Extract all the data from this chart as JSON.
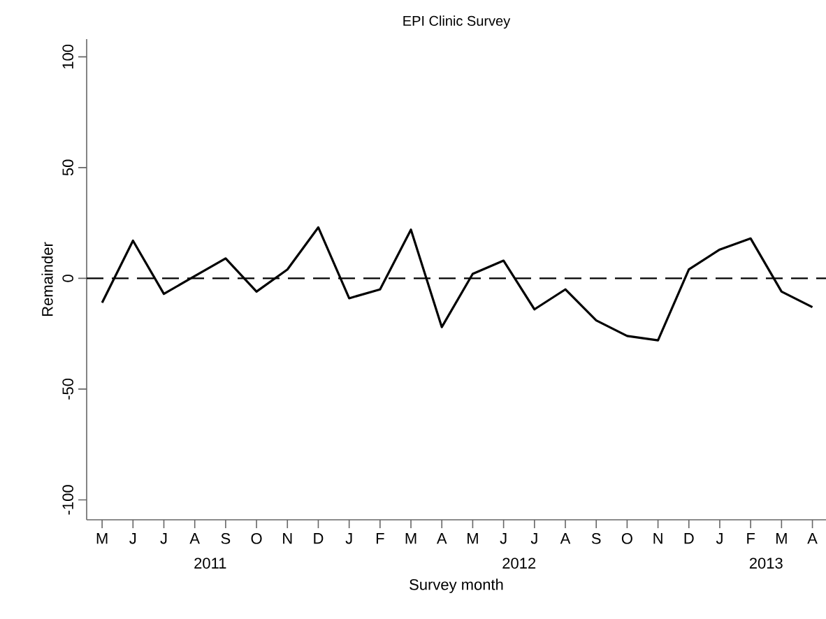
{
  "chart_data": {
    "type": "line",
    "title": "EPI Clinic Survey",
    "xlabel": "Survey month",
    "ylabel": "Remainder",
    "categories": [
      "M",
      "J",
      "J",
      "A",
      "S",
      "O",
      "N",
      "D",
      "J",
      "F",
      "M",
      "A",
      "M",
      "J",
      "J",
      "A",
      "S",
      "O",
      "N",
      "D",
      "J",
      "F",
      "M",
      "A"
    ],
    "series": [
      {
        "color": "#000000",
        "values": [
          -11,
          17,
          -7,
          1,
          9,
          -6,
          4,
          23,
          -9,
          -5,
          22,
          -22,
          2,
          8,
          -14,
          -5,
          -19,
          -26,
          -28,
          4,
          13,
          18,
          -6,
          -13
        ]
      }
    ],
    "ylim": [
      -109,
      108
    ],
    "yticks": [
      -100,
      -50,
      0,
      50,
      100
    ],
    "ref_lines": [
      {
        "axis": "y",
        "value": 0,
        "color": "#000000",
        "line_style": "dashed"
      }
    ],
    "annotations": [
      "2011",
      "2012",
      "2013"
    ],
    "grid": false,
    "marker": "none",
    "line_style": "solid"
  }
}
